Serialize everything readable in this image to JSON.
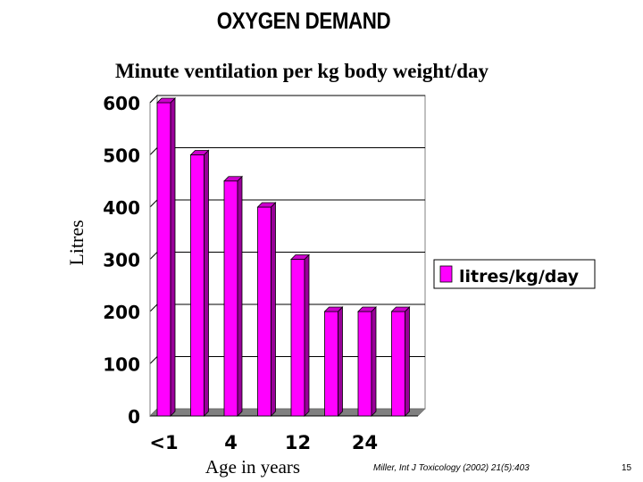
{
  "slide": {
    "title": "OXYGEN DEMAND",
    "citation": "Miller, Int J Toxicology (2002) 21(5):403",
    "page_number": "15"
  },
  "chart_data": {
    "type": "bar",
    "title": "Minute ventilation per kg body weight/day",
    "xlabel": "Age in years",
    "ylabel": "Litres",
    "categories": [
      "<1",
      "",
      "4",
      "",
      "12",
      "",
      "24",
      ""
    ],
    "series": [
      {
        "name": "litres/kg/day",
        "values": [
          600,
          500,
          450,
          400,
          300,
          200,
          200,
          200
        ]
      }
    ],
    "ylim": [
      0,
      600
    ],
    "yticks": [
      0,
      100,
      200,
      300,
      400,
      500,
      600
    ],
    "grid": true,
    "legend": "right",
    "colors": {
      "bar_front": "#FF00FF",
      "bar_side": "#990099",
      "bar_top": "#CC00CC",
      "floor": "#808080",
      "gridline": "#000000"
    }
  }
}
